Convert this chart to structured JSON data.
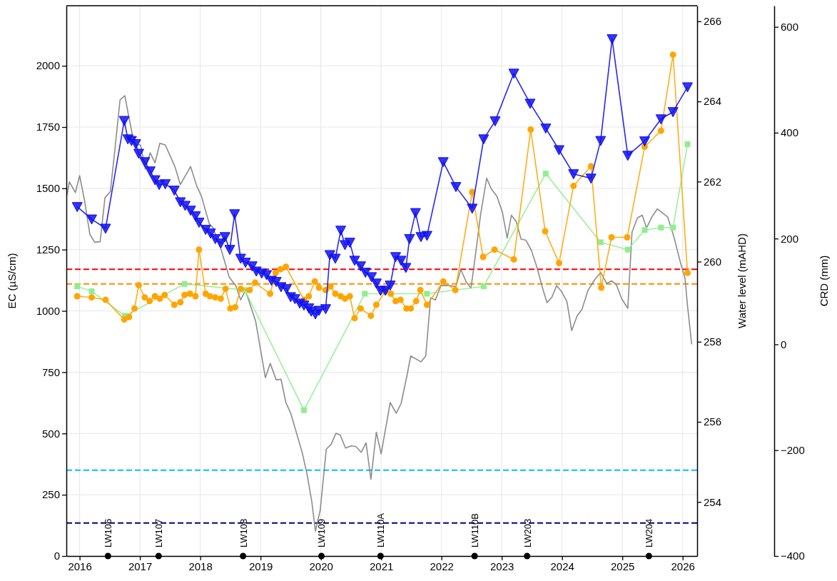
{
  "chart_data": {
    "type": "line",
    "ylabel": "EC (µS/cm)",
    "y2label": "Water level (mAHD)",
    "y3label": "CRD (mm)",
    "xlim": [
      2015.78,
      2026.24
    ],
    "xticks": [
      2016,
      2017,
      2018,
      2019,
      2020,
      2021,
      2022,
      2023,
      2024,
      2025,
      2026
    ],
    "ylim": [
      0,
      2245
    ],
    "yticks": [
      0,
      250,
      500,
      750,
      1000,
      1250,
      1500,
      1750,
      2000
    ],
    "y2lim": [
      252.65,
      266.39
    ],
    "y2ticks": [
      254,
      256,
      258,
      260,
      262,
      264,
      266
    ],
    "y3lim": [
      -400,
      640
    ],
    "y3ticks": [
      {
        "value": -400,
        "label": "−400"
      },
      {
        "value": -200,
        "label": "−200"
      },
      0,
      200,
      400,
      600
    ],
    "grid": true,
    "ref_lines": [
      {
        "axis": "y",
        "value": 1170,
        "color": "#ff0000",
        "line_style": "dashed"
      },
      {
        "axis": "y",
        "value": 1110,
        "color": "#ff8c00",
        "line_style": "dashed"
      },
      {
        "axis": "y",
        "value": 350,
        "color": "#00bfff",
        "line_style": "dashed"
      },
      {
        "axis": "y",
        "value": 135,
        "color": "#000080",
        "line_style": "dashed"
      }
    ],
    "annotations": [
      {
        "text": "LW106",
        "x": 2016.47,
        "y": 0
      },
      {
        "text": "LW107",
        "x": 2017.31,
        "y": 0
      },
      {
        "text": "LW108",
        "x": 2018.71,
        "y": 0
      },
      {
        "text": "LW109",
        "x": 2020.01,
        "y": 0
      },
      {
        "text": "LW110A",
        "x": 2020.99,
        "y": 0
      },
      {
        "text": "LW110B",
        "x": 2022.55,
        "y": 0
      },
      {
        "text": "LW203",
        "x": 2023.42,
        "y": 0
      },
      {
        "text": "LW204",
        "x": 2025.44,
        "y": 0
      }
    ],
    "series": [
      {
        "type": "line",
        "axis": "y3",
        "color": "#808080",
        "marker": "none",
        "x": [
          2015.79,
          2015.83,
          2015.93,
          2016.0,
          2016.08,
          2016.17,
          2016.25,
          2016.34,
          2016.42,
          2016.51,
          2016.58,
          2016.67,
          2016.75,
          2016.81,
          2016.87,
          2016.93,
          2017.01,
          2017.09,
          2017.17,
          2017.25,
          2017.33,
          2017.42,
          2017.58,
          2017.67,
          2017.84,
          2017.94,
          2018.02,
          2018.15,
          2018.21,
          2018.35,
          2018.48,
          2018.59,
          2018.67,
          2018.75,
          2018.92,
          2019.08,
          2019.16,
          2019.26,
          2019.34,
          2019.42,
          2019.5,
          2019.69,
          2019.77,
          2019.85,
          2019.91,
          2019.99,
          2020.09,
          2020.17,
          2020.25,
          2020.32,
          2020.41,
          2020.5,
          2020.58,
          2020.67,
          2020.75,
          2020.83,
          2020.92,
          2021.0,
          2021.15,
          2021.25,
          2021.33,
          2021.43,
          2021.49,
          2021.66,
          2021.74,
          2021.82,
          2021.9,
          2021.99,
          2022.15,
          2022.24,
          2022.32,
          2022.41,
          2022.49,
          2022.57,
          2022.65,
          2022.75,
          2022.83,
          2022.92,
          2023.01,
          2023.09,
          2023.16,
          2023.24,
          2023.32,
          2023.4,
          2023.49,
          2023.58,
          2023.67,
          2023.75,
          2023.83,
          2023.91,
          2023.99,
          2024.08,
          2024.16,
          2024.25,
          2024.33,
          2024.43,
          2024.54,
          2024.64,
          2024.74,
          2024.82,
          2024.9,
          2024.99,
          2025.09,
          2025.16,
          2025.25,
          2025.33,
          2025.4,
          2025.49,
          2025.58,
          2025.67,
          2025.75,
          2025.85,
          2025.96,
          2026.04,
          2026.08,
          2026.15
        ],
        "values": [
          282,
          307,
          287,
          319,
          273,
          208,
          193,
          194,
          277,
          289,
          363,
          462,
          470,
          433,
          399,
          377,
          377,
          331,
          362,
          343,
          380,
          377,
          336,
          302,
          336,
          300,
          280,
          228,
          221,
          178,
          127,
          111,
          84,
          102,
          43,
          -63,
          -36,
          -67,
          -66,
          -110,
          -130,
          -204,
          -245,
          -297,
          -353,
          -313,
          -198,
          -189,
          -168,
          -171,
          -196,
          -192,
          -193,
          -204,
          -186,
          -255,
          -166,
          -207,
          -110,
          -130,
          -112,
          -58,
          -22,
          -33,
          -22,
          88,
          84,
          111,
          111,
          109,
          142,
          118,
          106,
          174,
          246,
          314,
          293,
          280,
          250,
          201,
          244,
          232,
          199,
          197,
          178,
          147,
          109,
          79,
          89,
          111,
          100,
          81,
          26,
          54,
          66,
          102,
          122,
          136,
          115,
          120,
          113,
          86,
          68,
          212,
          239,
          244,
          220,
          241,
          256,
          248,
          241,
          205,
          156,
          124,
          73,
          0
        ]
      },
      {
        "type": "line",
        "axis": "y",
        "color": "#90ee90",
        "marker": "square",
        "x": [
          2015.96,
          2016.2,
          2016.75,
          2017.74,
          2018.74,
          2019.72,
          2020.73,
          2021.76,
          2022.7,
          2023.73,
          2024.64,
          2025.09,
          2025.37,
          2025.64,
          2025.84,
          2026.08
        ],
        "values": [
          1100,
          1080,
          980,
          1110,
          1085,
          595,
          1070,
          1070,
          1100,
          1560,
          1280,
          1250,
          1330,
          1340,
          1340,
          1680
        ]
      },
      {
        "type": "line",
        "axis": "y",
        "color": "#ffa500",
        "marker": "circle",
        "x": [
          2015.96,
          2016.2,
          2016.43,
          2016.74,
          2016.82,
          2016.91,
          2016.98,
          2017.08,
          2017.16,
          2017.25,
          2017.33,
          2017.41,
          2017.57,
          2017.67,
          2017.74,
          2017.83,
          2017.92,
          2017.98,
          2018.09,
          2018.16,
          2018.25,
          2018.34,
          2018.42,
          2018.5,
          2018.58,
          2018.67,
          2018.82,
          2018.91,
          2019.16,
          2019.25,
          2019.33,
          2019.42,
          2019.72,
          2019.8,
          2019.9,
          2019.97,
          2020.08,
          2020.16,
          2020.24,
          2020.33,
          2020.4,
          2020.48,
          2020.56,
          2020.66,
          2020.83,
          2020.92,
          2021.07,
          2021.16,
          2021.24,
          2021.32,
          2021.42,
          2021.49,
          2021.58,
          2021.65,
          2021.76,
          2022.03,
          2022.23,
          2022.51,
          2022.69,
          2022.88,
          2023.2,
          2023.48,
          2023.72,
          2023.95,
          2024.19,
          2024.48,
          2024.65,
          2024.82,
          2025.08,
          2025.37,
          2025.64,
          2025.84,
          2026.08
        ],
        "values": [
          1060,
          1055,
          1045,
          965,
          975,
          1010,
          1105,
          1055,
          1040,
          1060,
          1050,
          1065,
          1025,
          1035,
          1065,
          1070,
          1060,
          1250,
          1070,
          1060,
          1055,
          1050,
          1090,
          1010,
          1015,
          1090,
          1085,
          1115,
          1070,
          1155,
          1170,
          1180,
          1045,
          1060,
          1120,
          1095,
          1085,
          1100,
          1070,
          1060,
          1050,
          1060,
          970,
          1010,
          980,
          1025,
          1080,
          1070,
          1040,
          1045,
          1010,
          1010,
          1040,
          1085,
          1025,
          1120,
          1085,
          1485,
          1220,
          1250,
          1210,
          1740,
          1325,
          1195,
          1510,
          1590,
          1095,
          1300,
          1300,
          1670,
          1735,
          2045,
          1155
        ]
      },
      {
        "type": "line",
        "axis": "y2",
        "color": "#1010f0",
        "marker": "triangle",
        "x": [
          2015.96,
          2016.2,
          2016.43,
          2016.74,
          2016.8,
          2016.86,
          2016.93,
          2016.98,
          2017.08,
          2017.17,
          2017.25,
          2017.32,
          2017.42,
          2017.57,
          2017.67,
          2017.75,
          2017.84,
          2017.92,
          2017.98,
          2018.09,
          2018.17,
          2018.25,
          2018.34,
          2018.41,
          2018.49,
          2018.57,
          2018.67,
          2018.75,
          2018.86,
          2018.93,
          2019.02,
          2019.1,
          2019.18,
          2019.26,
          2019.34,
          2019.43,
          2019.5,
          2019.57,
          2019.65,
          2019.72,
          2019.8,
          2019.84,
          2019.91,
          2019.97,
          2020.08,
          2020.15,
          2020.24,
          2020.33,
          2020.4,
          2020.48,
          2020.56,
          2020.66,
          2020.74,
          2020.84,
          2020.92,
          2020.99,
          2021.07,
          2021.15,
          2021.24,
          2021.33,
          2021.41,
          2021.47,
          2021.57,
          2021.66,
          2021.76,
          2022.03,
          2022.24,
          2022.51,
          2022.7,
          2022.89,
          2023.2,
          2023.47,
          2023.73,
          2023.95,
          2024.19,
          2024.48,
          2024.64,
          2024.83,
          2025.09,
          2025.37,
          2025.64,
          2025.84,
          2026.08
        ],
        "values": [
          261.37,
          261.06,
          260.83,
          263.52,
          263.06,
          263.02,
          262.94,
          262.7,
          262.49,
          262.26,
          262.04,
          261.92,
          261.94,
          261.78,
          261.49,
          261.4,
          261.28,
          261.14,
          260.98,
          260.8,
          260.71,
          260.57,
          260.46,
          260.62,
          260.3,
          261.19,
          260.08,
          259.98,
          259.89,
          259.76,
          259.71,
          259.67,
          259.53,
          259.5,
          259.37,
          259.32,
          259.12,
          259.07,
          258.96,
          258.91,
          258.84,
          258.76,
          258.69,
          258.78,
          258.82,
          260.17,
          260.08,
          260.78,
          260.42,
          260.48,
          260.03,
          259.89,
          259.73,
          259.62,
          259.46,
          259.28,
          259.28,
          259.41,
          260.12,
          260.03,
          259.85,
          260.57,
          261.22,
          260.62,
          260.65,
          262.49,
          261.87,
          261.33,
          263.06,
          263.51,
          264.7,
          263.95,
          263.33,
          262.79,
          262.19,
          262.08,
          263.02,
          265.56,
          262.65,
          263.01,
          263.56,
          263.74,
          264.36
        ]
      },
      {
        "type": "scatter",
        "axis": "y",
        "color": "#000000",
        "marker": "circle",
        "x": [
          2016.47,
          2017.31,
          2018.71,
          2020.01,
          2020.99,
          2022.55,
          2023.42,
          2025.44
        ],
        "values": [
          0,
          0,
          0,
          0,
          0,
          0,
          0,
          0
        ]
      }
    ]
  }
}
